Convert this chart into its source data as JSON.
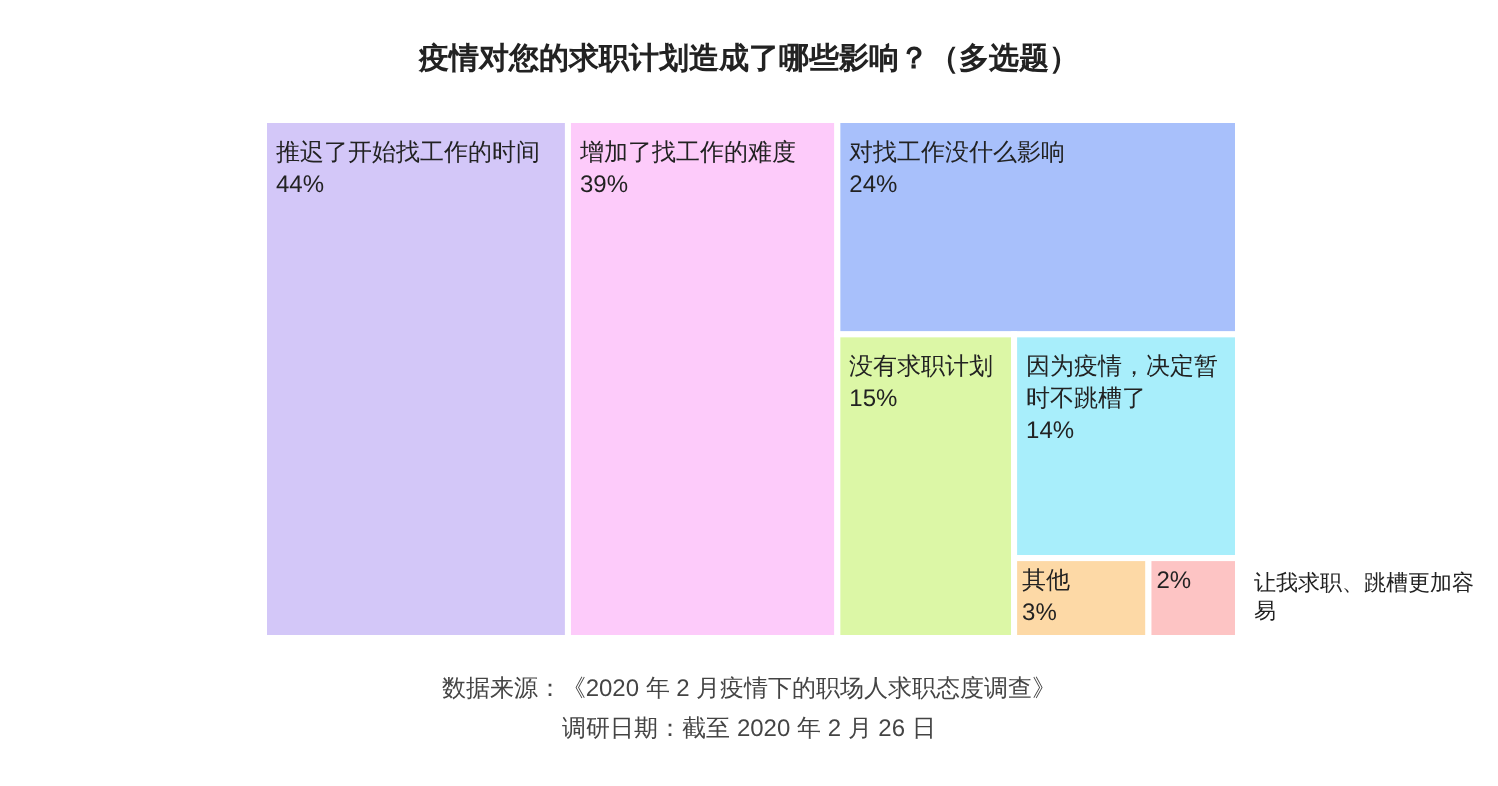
{
  "chart_data": {
    "type": "other",
    "title": "疫情对您的求职计划造成了哪些影响？（多选题）",
    "categories": [
      "推迟了开始找工作的时间",
      "增加了找工作的难度",
      "对找工作没什么影响",
      "没有求职计划",
      "因为疫情，决定暂时不跳槽了",
      "其他",
      "让我求职、跳槽更加容易"
    ],
    "values": [
      44,
      39,
      24,
      15,
      14,
      3,
      2
    ],
    "value_labels": [
      "44%",
      "39%",
      "24%",
      "15%",
      "14%",
      "3%",
      "2%"
    ],
    "colors": [
      "#d3c7f8",
      "#fdcbfa",
      "#a8c0fb",
      "#dcf7a6",
      "#a8eefb",
      "#fdd9a6",
      "#fdc4c4"
    ],
    "annotations": [
      "数据来源：《2020 年 2 月疫情下的职场人求职态度调查》",
      "调研日期：截至 2020 年 2 月 26 日"
    ]
  }
}
